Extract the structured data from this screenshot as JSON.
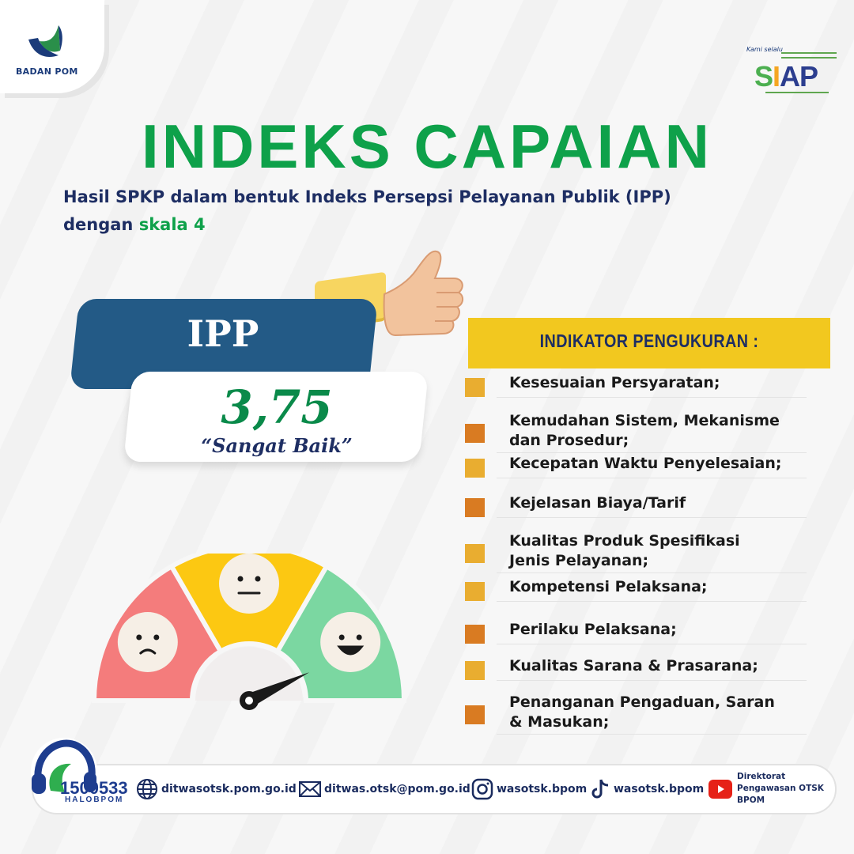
{
  "brand": {
    "logo_text": "BADAN POM",
    "siap_tagline": "Kami selalu",
    "siap_word": "SIAP"
  },
  "header": {
    "title": "INDEKS CAPAIAN",
    "subtitle_line1": "Hasil SPKP dalam bentuk Indeks Persepsi Pelayanan Publik (IPP)",
    "subtitle_line2_prefix": "dengan ",
    "subtitle_line2_highlight": "skala 4"
  },
  "ipp": {
    "label": "IPP",
    "value": "3,75",
    "description": "“Sangat Baik”"
  },
  "gauge": {
    "segments": [
      "sad",
      "neutral",
      "happy"
    ],
    "colors": [
      "#f47c7c",
      "#fcc812",
      "#7bd7a1"
    ],
    "needle_fraction": 0.86
  },
  "indicators": {
    "title": "INDIKATOR PENGUKURAN :",
    "items": [
      {
        "line1": "Kesesuaian Persyaratan;",
        "line2": "",
        "color": "#e9ad30"
      },
      {
        "line1": "Kemudahan Sistem, Mekanisme",
        "line2": "dan Prosedur;",
        "color": "#d97b22"
      },
      {
        "line1": "Kecepatan Waktu Penyelesaian;",
        "line2": "",
        "color": "#e9ad30"
      },
      {
        "line1": "Kejelasan Biaya/Tarif",
        "line2": "",
        "color": "#d97b22"
      },
      {
        "line1": "Kualitas Produk Spesifikasi",
        "line2": "Jenis Pelayanan;",
        "color": "#e9ad30"
      },
      {
        "line1": "Kompetensi Pelaksana;",
        "line2": "",
        "color": "#e9ad30"
      },
      {
        "line1": "Perilaku Pelaksana;",
        "line2": "",
        "color": "#d97b22"
      },
      {
        "line1": "Kualitas Sarana & Prasarana;",
        "line2": "",
        "color": "#e9ad30"
      },
      {
        "line1": "Penanganan Pengaduan, Saran",
        "line2": "& Masukan;",
        "color": "#d97b22"
      }
    ]
  },
  "footer": {
    "hotline_number": "1500533",
    "hotline_label": "HALOBPOM",
    "website": "ditwasotsk.pom.go.id",
    "email": "ditwas.otsk@pom.go.id",
    "instagram": "wasotsk.bpom",
    "tiktok": "wasotsk.bpom",
    "youtube_line1": "Direktorat",
    "youtube_line2": "Pengawasan OTSK",
    "youtube_line3": "BPOM"
  }
}
